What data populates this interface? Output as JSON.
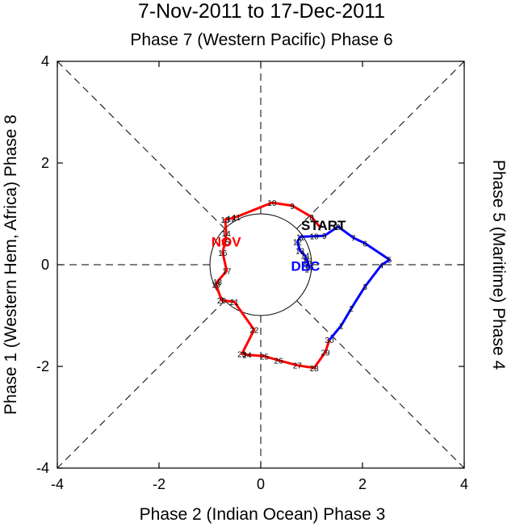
{
  "chart_data": {
    "type": "line",
    "title": "7-Nov-2011 to 17-Dec-2011",
    "subtitle": "Phase 7 (Western Pacific) Phase 6",
    "xlabel": "Phase 2 (Indian Ocean) Phase 3",
    "ylabel_left": "Phase 1 (Western Hem, Africa) Phase 8",
    "ylabel_right": "Phase 5 (Maritime) Phase 4",
    "xlim": [
      -4,
      4
    ],
    "ylim": [
      -4,
      4
    ],
    "xticks": [
      "-4",
      "-2",
      "0",
      "2",
      "4"
    ],
    "yticks": [
      "-4",
      "-2",
      "0",
      "2",
      "4"
    ],
    "tick_values": [
      -4,
      -2,
      0,
      2,
      4
    ],
    "unit_circle_radius": 1,
    "start_label": "START",
    "start_point": [
      1.17,
      0.73
    ],
    "series": [
      {
        "name": "NOV",
        "color": "#ff0000",
        "label_at": [
          -0.68,
          0.45
        ],
        "points": [
          {
            "day": "7",
            "x": 1.17,
            "y": 0.73
          },
          {
            "day": "8",
            "x": 1.0,
            "y": 0.94
          },
          {
            "day": "9",
            "x": 0.62,
            "y": 1.16
          },
          {
            "day": "10",
            "x": 0.22,
            "y": 1.22
          },
          {
            "day": "11",
            "x": -0.48,
            "y": 0.94
          },
          {
            "day": "12",
            "x": -0.58,
            "y": 0.91
          },
          {
            "day": "13",
            "x": -0.7,
            "y": 0.89
          },
          {
            "day": "14",
            "x": -0.68,
            "y": 0.62
          },
          {
            "day": "15",
            "x": -0.7,
            "y": 0.45
          },
          {
            "day": "16",
            "x": -0.75,
            "y": 0.24
          },
          {
            "day": "17",
            "x": -0.67,
            "y": -0.12
          },
          {
            "day": "18",
            "x": -0.85,
            "y": -0.33
          },
          {
            "day": "19",
            "x": -0.88,
            "y": -0.39
          },
          {
            "day": "20",
            "x": -0.77,
            "y": -0.7
          },
          {
            "day": "21",
            "x": -0.52,
            "y": -0.73
          },
          {
            "day": "22",
            "x": -0.13,
            "y": -1.28
          },
          {
            "day": "23",
            "x": -0.37,
            "y": -1.75
          },
          {
            "day": "24",
            "x": -0.27,
            "y": -1.77
          },
          {
            "day": "25",
            "x": 0.07,
            "y": -1.8
          },
          {
            "day": "26",
            "x": 0.35,
            "y": -1.88
          },
          {
            "day": "27",
            "x": 0.72,
            "y": -1.98
          },
          {
            "day": "28",
            "x": 1.05,
            "y": -2.03
          },
          {
            "day": "29",
            "x": 1.27,
            "y": -1.72
          },
          {
            "day": "30",
            "x": 1.35,
            "y": -1.48
          }
        ]
      },
      {
        "name": "DEC",
        "color": "#0000ff",
        "label_at": [
          0.88,
          -0.02
        ],
        "points": [
          {
            "day": "1",
            "x": 1.58,
            "y": -1.2
          },
          {
            "day": "2",
            "x": 1.78,
            "y": -0.86
          },
          {
            "day": "3",
            "x": 2.05,
            "y": -0.43
          },
          {
            "day": "4",
            "x": 2.37,
            "y": -0.01
          },
          {
            "day": "5",
            "x": 2.53,
            "y": 0.1
          },
          {
            "day": "6",
            "x": 2.05,
            "y": 0.42
          },
          {
            "day": "7",
            "x": 1.82,
            "y": 0.53
          },
          {
            "day": "8",
            "x": 1.52,
            "y": 0.75
          },
          {
            "day": "9",
            "x": 1.25,
            "y": 0.57
          },
          {
            "day": "10",
            "x": 1.05,
            "y": 0.56
          },
          {
            "day": "11",
            "x": 0.78,
            "y": 0.55
          },
          {
            "day": "12",
            "x": 0.72,
            "y": 0.45
          },
          {
            "day": "13",
            "x": 0.77,
            "y": 0.28
          },
          {
            "day": "14",
            "x": 0.87,
            "y": 0.18
          },
          {
            "day": "15",
            "x": 0.91,
            "y": 0.07
          },
          {
            "day": "16",
            "x": 0.95,
            "y": -0.04
          },
          {
            "day": "17",
            "x": 0.95,
            "y": -0.09
          }
        ]
      }
    ]
  }
}
